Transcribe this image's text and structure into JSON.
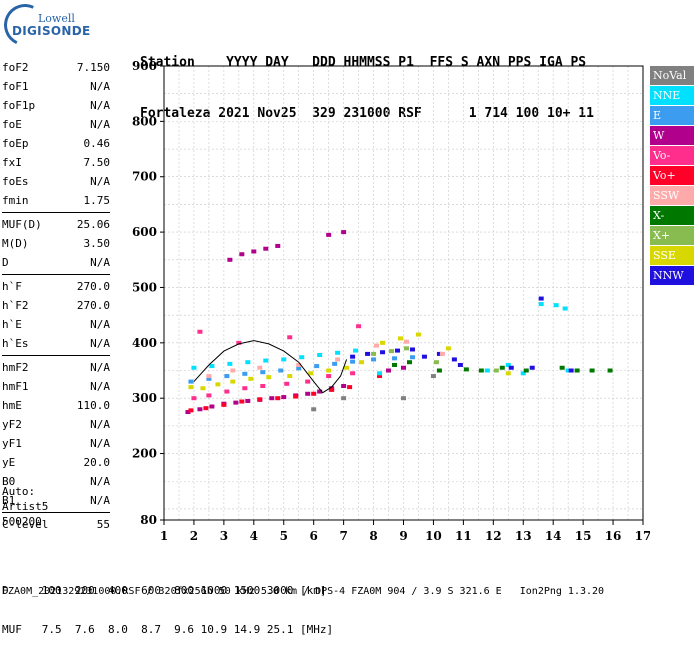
{
  "logo": {
    "top": "Lowell",
    "main": "DIGISONDE"
  },
  "header": {
    "line1": "Station    YYYY DAY   DDD HHMMSS P1  FFS S AXN PPS IGA PS",
    "line2": "Fortaleza 2021 Nov25  329 231000 RSF      1 714 100 10+ 11"
  },
  "params_top": [
    {
      "label": "foF2",
      "value": "7.150"
    },
    {
      "label": "foF1",
      "value": "N/A"
    },
    {
      "label": "foF1p",
      "value": "N/A"
    },
    {
      "label": "foE",
      "value": "N/A"
    },
    {
      "label": "foEp",
      "value": "0.46"
    },
    {
      "label": "fxI",
      "value": "7.50"
    },
    {
      "label": "foEs",
      "value": "N/A"
    },
    {
      "label": "fmin",
      "value": "1.75"
    }
  ],
  "params_muf": [
    {
      "label": "MUF(D)",
      "value": "25.06"
    },
    {
      "label": "M(D)",
      "value": "3.50"
    },
    {
      "label": "D",
      "value": "N/A"
    }
  ],
  "params_h": [
    {
      "label": "h`F",
      "value": "270.0"
    },
    {
      "label": "h`F2",
      "value": "270.0"
    },
    {
      "label": "h`E",
      "value": "N/A"
    },
    {
      "label": "h`Es",
      "value": "N/A"
    }
  ],
  "params_hm": [
    {
      "label": "hmF2",
      "value": "N/A"
    },
    {
      "label": "hmF1",
      "value": "N/A"
    },
    {
      "label": "hmE",
      "value": "110.0"
    },
    {
      "label": "yF2",
      "value": "N/A"
    },
    {
      "label": "yF1",
      "value": "N/A"
    },
    {
      "label": "yE",
      "value": "20.0"
    },
    {
      "label": "B0",
      "value": "N/A"
    },
    {
      "label": "B1",
      "value": "N/A"
    }
  ],
  "params_c": [
    {
      "label": "C-level",
      "value": "55"
    }
  ],
  "auto": {
    "line1": "Auto:",
    "line2": "Artist5",
    "line3": "500200"
  },
  "footer": {
    "line1": "D     100  200  400  600  800 1000 1500 3000 [km]",
    "line2": "MUF   7.5  7.6  8.0  8.7  9.6 10.9 14.9 25.1 [MHz]",
    "line3": "FZA0M_2021329231000.RSF / 320fx256h 50 kHz 5.0 km / DPS-4 FZA0M 904 / 3.9 S 321.6 E   Ion2Png 1.3.20"
  },
  "legend": [
    {
      "label": "NoVal",
      "color": "#808080"
    },
    {
      "label": "NNE",
      "color": "#00e0ff"
    },
    {
      "label": "E",
      "color": "#3c9cf0"
    },
    {
      "label": "W",
      "color": "#b0008c"
    },
    {
      "label": "Vo-",
      "color": "#ff2e8c"
    },
    {
      "label": "Vo+",
      "color": "#ff0028"
    },
    {
      "label": "SSW",
      "color": "#ffaaaa"
    },
    {
      "label": "X-",
      "color": "#007800"
    },
    {
      "label": "X+",
      "color": "#88bc50"
    },
    {
      "label": "SSE",
      "color": "#d8d800"
    },
    {
      "label": "NNW",
      "color": "#2010e0"
    }
  ],
  "chart_data": {
    "type": "scatter",
    "title": "",
    "xlabel": "",
    "ylabel": "",
    "xlim": [
      1,
      17
    ],
    "ylim": [
      80,
      900
    ],
    "x_ticks": [
      1,
      2,
      3,
      4,
      5,
      6,
      7,
      8,
      9,
      10,
      11,
      12,
      13,
      14,
      15,
      16,
      17
    ],
    "y_ticks": [
      80,
      200,
      300,
      400,
      500,
      600,
      700,
      800,
      900
    ],
    "grid": true,
    "series": [
      {
        "name": "W",
        "color": "#b0008c",
        "points": [
          [
            1.8,
            275
          ],
          [
            2.2,
            280
          ],
          [
            2.6,
            285
          ],
          [
            3.0,
            290
          ],
          [
            3.4,
            292
          ],
          [
            3.8,
            295
          ],
          [
            4.2,
            297
          ],
          [
            4.6,
            300
          ],
          [
            5.0,
            302
          ],
          [
            5.4,
            305
          ],
          [
            5.8,
            308
          ],
          [
            6.2,
            312
          ],
          [
            6.6,
            318
          ],
          [
            7.0,
            322
          ],
          [
            3.2,
            550
          ],
          [
            3.6,
            560
          ],
          [
            4.0,
            565
          ],
          [
            4.4,
            570
          ],
          [
            4.8,
            575
          ],
          [
            6.5,
            595
          ],
          [
            7.0,
            600
          ],
          [
            8.5,
            350
          ],
          [
            9.0,
            355
          ]
        ]
      },
      {
        "name": "Vo+",
        "color": "#ff0028",
        "points": [
          [
            1.9,
            278
          ],
          [
            2.4,
            282
          ],
          [
            3.0,
            288
          ],
          [
            3.6,
            294
          ],
          [
            4.2,
            298
          ],
          [
            4.8,
            300
          ],
          [
            5.4,
            303
          ],
          [
            6.0,
            308
          ],
          [
            6.6,
            315
          ],
          [
            7.2,
            320
          ],
          [
            8.2,
            340
          ]
        ]
      },
      {
        "name": "Vo-",
        "color": "#ff2e8c",
        "points": [
          [
            2.0,
            300
          ],
          [
            2.5,
            305
          ],
          [
            3.1,
            312
          ],
          [
            3.7,
            318
          ],
          [
            4.3,
            322
          ],
          [
            5.1,
            326
          ],
          [
            5.8,
            330
          ],
          [
            6.5,
            340
          ],
          [
            7.3,
            345
          ],
          [
            2.2,
            420
          ],
          [
            3.5,
            400
          ],
          [
            5.2,
            410
          ],
          [
            7.5,
            430
          ]
        ]
      },
      {
        "name": "E",
        "color": "#3c9cf0",
        "points": [
          [
            1.9,
            330
          ],
          [
            2.5,
            335
          ],
          [
            3.1,
            340
          ],
          [
            3.7,
            344
          ],
          [
            4.3,
            347
          ],
          [
            4.9,
            350
          ],
          [
            5.5,
            354
          ],
          [
            6.1,
            358
          ],
          [
            6.7,
            362
          ],
          [
            7.3,
            366
          ],
          [
            8.0,
            370
          ],
          [
            8.7,
            372
          ],
          [
            9.3,
            374
          ]
        ]
      },
      {
        "name": "NNE",
        "color": "#00e0ff",
        "points": [
          [
            2.0,
            355
          ],
          [
            2.6,
            358
          ],
          [
            3.2,
            362
          ],
          [
            3.8,
            365
          ],
          [
            4.4,
            368
          ],
          [
            5.0,
            370
          ],
          [
            5.6,
            374
          ],
          [
            6.2,
            378
          ],
          [
            6.8,
            382
          ],
          [
            7.4,
            386
          ],
          [
            8.2,
            345
          ],
          [
            11.8,
            350
          ],
          [
            12.5,
            360
          ],
          [
            13.0,
            345
          ],
          [
            13.6,
            470
          ],
          [
            14.1,
            468
          ],
          [
            14.4,
            462
          ],
          [
            14.5,
            350
          ]
        ]
      },
      {
        "name": "NNW",
        "color": "#2010e0",
        "points": [
          [
            7.3,
            375
          ],
          [
            7.8,
            380
          ],
          [
            8.3,
            383
          ],
          [
            8.8,
            386
          ],
          [
            9.3,
            388
          ],
          [
            9.7,
            375
          ],
          [
            10.2,
            380
          ],
          [
            10.7,
            370
          ],
          [
            10.9,
            360
          ],
          [
            12.6,
            355
          ],
          [
            13.3,
            355
          ],
          [
            13.6,
            480
          ],
          [
            14.6,
            350
          ]
        ]
      },
      {
        "name": "SSE",
        "color": "#d8d800",
        "points": [
          [
            1.9,
            320
          ],
          [
            2.3,
            318
          ],
          [
            2.8,
            325
          ],
          [
            3.3,
            330
          ],
          [
            3.9,
            335
          ],
          [
            4.5,
            338
          ],
          [
            5.2,
            340
          ],
          [
            5.9,
            345
          ],
          [
            6.5,
            350
          ],
          [
            7.1,
            355
          ],
          [
            7.6,
            365
          ],
          [
            8.3,
            400
          ],
          [
            8.9,
            408
          ],
          [
            9.5,
            415
          ],
          [
            10.5,
            390
          ],
          [
            12.5,
            345
          ]
        ]
      },
      {
        "name": "X-",
        "color": "#007800",
        "points": [
          [
            8.7,
            360
          ],
          [
            9.2,
            365
          ],
          [
            10.2,
            350
          ],
          [
            11.1,
            352
          ],
          [
            11.6,
            350
          ],
          [
            12.3,
            355
          ],
          [
            13.1,
            350
          ],
          [
            14.3,
            355
          ],
          [
            14.8,
            350
          ],
          [
            15.3,
            350
          ],
          [
            15.9,
            350
          ]
        ]
      },
      {
        "name": "X+",
        "color": "#88bc50",
        "points": [
          [
            8.0,
            380
          ],
          [
            8.6,
            385
          ],
          [
            9.1,
            390
          ],
          [
            10.1,
            365
          ],
          [
            12.1,
            350
          ]
        ]
      },
      {
        "name": "SSW",
        "color": "#ffaaaa",
        "points": [
          [
            2.5,
            340
          ],
          [
            3.3,
            350
          ],
          [
            4.2,
            355
          ],
          [
            5.5,
            360
          ],
          [
            6.8,
            370
          ],
          [
            8.1,
            395
          ],
          [
            9.1,
            402
          ],
          [
            10.3,
            380
          ]
        ]
      },
      {
        "name": "NoVal",
        "color": "#808080",
        "points": [
          [
            6.0,
            280
          ],
          [
            7.0,
            300
          ],
          [
            9.0,
            300
          ],
          [
            10.0,
            340
          ]
        ]
      }
    ],
    "trace": {
      "color": "#000000",
      "points": [
        [
          2.0,
          330
        ],
        [
          2.5,
          360
        ],
        [
          3.0,
          385
        ],
        [
          3.5,
          398
        ],
        [
          4.0,
          404
        ],
        [
          4.5,
          398
        ],
        [
          5.0,
          385
        ],
        [
          5.5,
          365
        ],
        [
          6.0,
          330
        ],
        [
          6.3,
          310
        ],
        [
          6.6,
          320
        ],
        [
          6.9,
          340
        ],
        [
          7.1,
          370
        ]
      ]
    }
  }
}
